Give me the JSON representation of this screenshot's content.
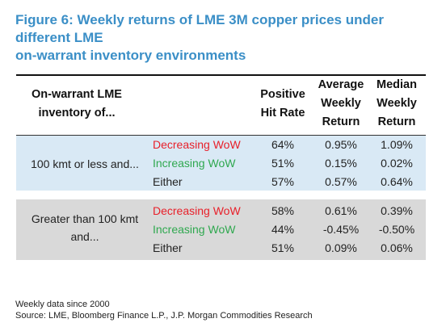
{
  "title_line1": "Figure 6: Weekly returns of LME 3M copper prices under different LME",
  "title_line2": "on-warrant inventory environments",
  "chart_data": {
    "type": "table",
    "columns": {
      "inventory": [
        "On-warrant LME",
        "inventory of..."
      ],
      "condition": "",
      "hit_rate": [
        "Positive",
        "Hit Rate"
      ],
      "avg": [
        "Average",
        "Weekly",
        "Return"
      ],
      "median": [
        "Median",
        "Weekly",
        "Return"
      ]
    },
    "groups": [
      {
        "label": [
          "100 kmt or less and..."
        ],
        "rows": [
          {
            "condition": "Decreasing WoW",
            "color": "#e8202a",
            "hit_rate": "64%",
            "avg": "0.95%",
            "median": "1.09%"
          },
          {
            "condition": "Increasing WoW",
            "color": "#2fa84f",
            "hit_rate": "51%",
            "avg": "0.15%",
            "median": "0.02%"
          },
          {
            "condition": "Either",
            "color": "#222222",
            "hit_rate": "57%",
            "avg": "0.57%",
            "median": "0.64%"
          }
        ]
      },
      {
        "label": [
          "Greater than 100 kmt",
          "and..."
        ],
        "rows": [
          {
            "condition": "Decreasing WoW",
            "color": "#e8202a",
            "hit_rate": "58%",
            "avg": "0.61%",
            "median": "0.39%"
          },
          {
            "condition": "Increasing WoW",
            "color": "#2fa84f",
            "hit_rate": "44%",
            "avg": "-0.45%",
            "median": "-0.50%"
          },
          {
            "condition": "Either",
            "color": "#222222",
            "hit_rate": "51%",
            "avg": "0.09%",
            "median": "0.06%"
          }
        ]
      }
    ]
  },
  "notes": {
    "line1": "Weekly data since 2000",
    "line2": "Source: LME, Bloomberg Finance L.P., J.P. Morgan Commodities Research"
  }
}
